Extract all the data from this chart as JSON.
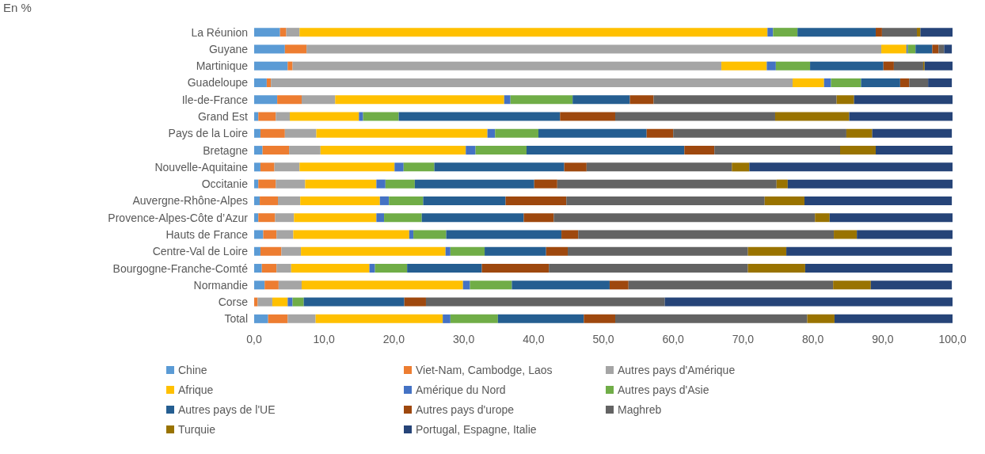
{
  "chart_data": {
    "type": "bar",
    "orientation": "horizontal",
    "stacked": true,
    "annotations": [
      "En %"
    ],
    "categories": [
      "La Réunion",
      "Guyane",
      "Martinique",
      "Guadeloupe",
      "Ile-de-France",
      "Grand Est",
      "Pays de la Loire",
      "Bretagne",
      "Nouvelle-Aquitaine",
      "Occitanie",
      "Auvergne-Rhône-Alpes",
      "Provence-Alpes-Côte d’Azur",
      "Hauts de France",
      "Centre-Val de Loire",
      "Bourgogne-Franche-Comté",
      "Normandie",
      "Corse",
      "Total"
    ],
    "series": [
      {
        "name": "Chine",
        "color": "#5b9bd5",
        "values": [
          3.7,
          4.4,
          4.8,
          1.8,
          3.3,
          0.6,
          0.9,
          1.2,
          0.9,
          0.6,
          0.8,
          0.6,
          1.3,
          0.9,
          1.1,
          1.5,
          0.0,
          2.0
        ]
      },
      {
        "name": "Viet-Nam, Cambodge, Laos",
        "color": "#ed7d31",
        "values": [
          0.9,
          3.1,
          0.7,
          0.6,
          3.5,
          2.5,
          3.5,
          3.8,
          2.0,
          2.5,
          2.6,
          2.4,
          1.9,
          3.0,
          2.1,
          2.0,
          0.5,
          2.8
        ]
      },
      {
        "name": "Autres pays d'Amérique",
        "color": "#a5a5a5",
        "values": [
          1.9,
          82.3,
          61.4,
          74.7,
          4.8,
          2.0,
          4.5,
          4.5,
          3.6,
          4.2,
          3.2,
          2.7,
          2.4,
          2.8,
          2.1,
          3.3,
          2.1,
          4.0
        ]
      },
      {
        "name": "Afrique",
        "color": "#ffc000",
        "values": [
          67.0,
          3.6,
          6.5,
          4.5,
          24.2,
          9.9,
          24.5,
          20.8,
          13.6,
          10.2,
          11.4,
          11.8,
          16.6,
          20.7,
          11.2,
          23.1,
          2.2,
          18.2
        ]
      },
      {
        "name": "Amérique du Nord",
        "color": "#4472c4",
        "values": [
          0.8,
          0.2,
          1.3,
          1.0,
          0.9,
          0.6,
          1.1,
          1.4,
          1.3,
          1.3,
          1.3,
          1.1,
          0.6,
          0.7,
          0.8,
          1.0,
          0.7,
          1.1
        ]
      },
      {
        "name": "Autres pays d'Asie",
        "color": "#70ad47",
        "values": [
          3.5,
          1.1,
          4.9,
          4.3,
          8.9,
          5.1,
          6.2,
          7.3,
          4.4,
          4.2,
          4.9,
          5.4,
          4.7,
          4.9,
          4.6,
          6.0,
          1.6,
          6.8
        ]
      },
      {
        "name": "Autres pays de l'UE",
        "color": "#255e91",
        "values": [
          11.2,
          2.4,
          10.5,
          5.6,
          8.2,
          23.1,
          15.5,
          22.6,
          18.6,
          17.1,
          11.8,
          14.6,
          16.5,
          8.8,
          10.7,
          14.0,
          14.4,
          12.3
        ]
      },
      {
        "name": "Autres pays d'urope",
        "color": "#9e480e",
        "values": [
          0.9,
          0.9,
          1.5,
          1.3,
          3.4,
          7.9,
          3.8,
          4.3,
          3.2,
          3.3,
          8.7,
          4.3,
          2.4,
          3.1,
          9.6,
          2.7,
          3.1,
          4.5
        ]
      },
      {
        "name": "Maghreb",
        "color": "#636363",
        "values": [
          5.0,
          0.8,
          4.2,
          2.7,
          26.2,
          22.9,
          24.8,
          18.0,
          20.8,
          31.4,
          28.4,
          37.4,
          36.6,
          25.8,
          28.5,
          29.3,
          34.2,
          27.5
        ]
      },
      {
        "name": "Turquie",
        "color": "#997300",
        "values": [
          0.5,
          0.0,
          0.2,
          0.0,
          2.5,
          10.6,
          3.7,
          5.1,
          2.5,
          1.6,
          5.7,
          2.1,
          3.3,
          5.5,
          8.2,
          5.4,
          null,
          3.9
        ]
      },
      {
        "name": "Portugal, Espagne, Italie",
        "color": "#264478",
        "values": [
          4.7,
          1.1,
          4.0,
          3.4,
          14.2,
          14.9,
          11.4,
          11.1,
          29.1,
          23.6,
          21.1,
          17.6,
          13.8,
          23.7,
          21.2,
          11.6,
          41.2,
          17.1
        ]
      }
    ],
    "xlim": [
      0,
      100
    ],
    "xticks": [
      {
        "value": 0,
        "label": "0,0"
      },
      {
        "value": 10,
        "label": "10,0"
      },
      {
        "value": 20,
        "label": "20,0"
      },
      {
        "value": 30,
        "label": "30,0"
      },
      {
        "value": 40,
        "label": "40,0"
      },
      {
        "value": 50,
        "label": "50,0"
      },
      {
        "value": 60,
        "label": "60,0"
      },
      {
        "value": 70,
        "label": "70,0"
      },
      {
        "value": 80,
        "label": "80,0"
      },
      {
        "value": 90,
        "label": "90,0"
      },
      {
        "value": 100,
        "label": "100,0"
      }
    ],
    "legend": "bottom",
    "grid": false
  }
}
